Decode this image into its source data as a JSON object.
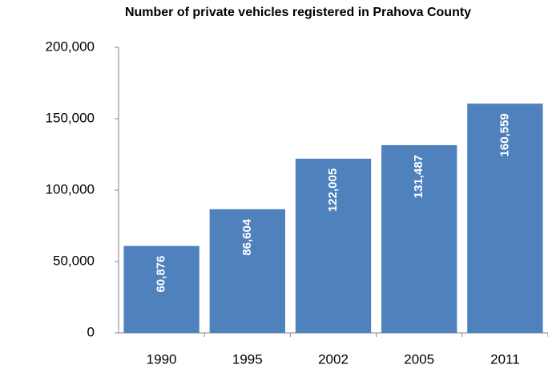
{
  "chart_data": {
    "type": "bar",
    "title": "Number of private vehicles registered in Prahova County",
    "categories": [
      "1990",
      "1995",
      "2002",
      "2005",
      "2011"
    ],
    "values": [
      60876,
      86604,
      122005,
      131487,
      160559
    ],
    "value_labels": [
      "60,876",
      "86,604",
      "122,005",
      "131,487",
      "160,559"
    ],
    "color": "#4f81bd",
    "ylim": [
      0,
      200000
    ],
    "yticks": [
      0,
      {
        "value": 50000,
        "label": "50,000"
      },
      {
        "value": 100000,
        "label": "100,000"
      },
      {
        "value": 150000,
        "label": "150,000"
      },
      {
        "value": 200000,
        "label": "200,000"
      }
    ],
    "grid": false
  }
}
